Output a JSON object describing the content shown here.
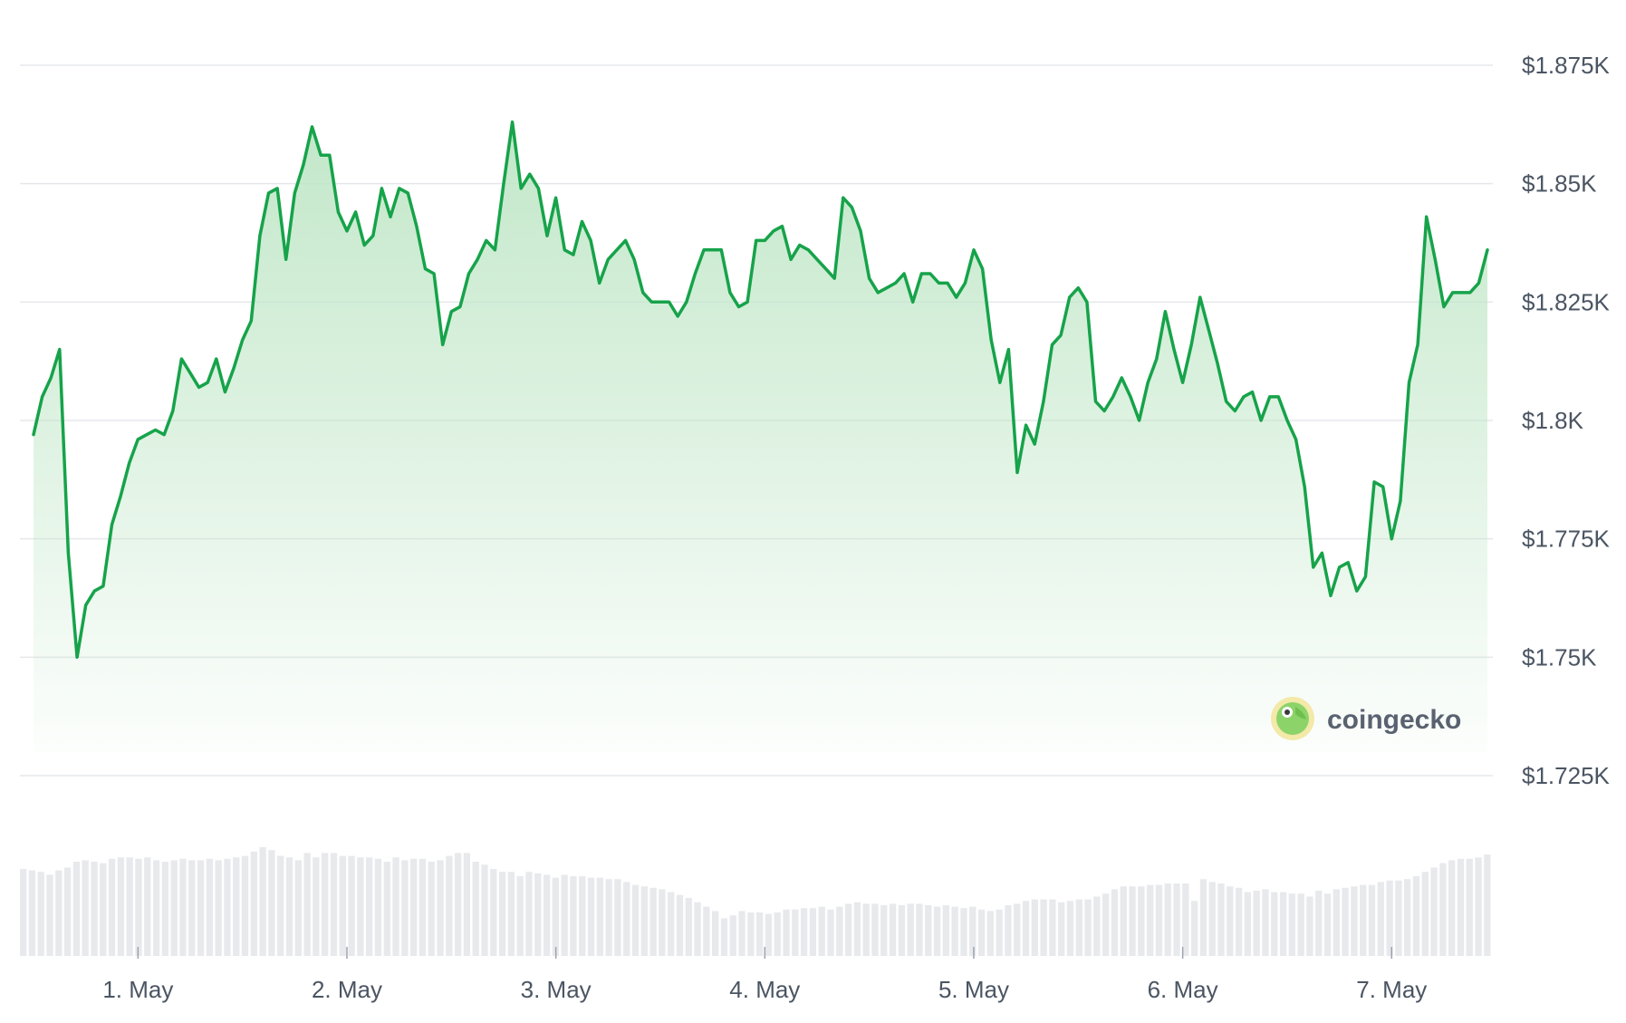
{
  "watermark": {
    "text": "coingecko",
    "icon": "gecko-logo-icon"
  },
  "colors": {
    "line": "#16a34a",
    "fill": "#bfe6c6",
    "grid": "#e5e7eb",
    "volume": "#e8e9ec",
    "text": "#4b5563"
  },
  "chart_data": {
    "type": "area",
    "y_axis": {
      "position": "right",
      "ylim": [
        1725,
        1875
      ],
      "ticks": [
        1725,
        1750,
        1775,
        1800,
        1825,
        1850,
        1875
      ],
      "tick_labels": [
        "$1.725K",
        "$1.75K",
        "$1.775K",
        "$1.8K",
        "$1.825K",
        "$1.85K",
        "$1.875K"
      ]
    },
    "x_axis": {
      "labels": [
        "1. May",
        "2. May",
        "3. May",
        "4. May",
        "5. May",
        "6. May",
        "7. May"
      ],
      "tick_index": [
        12,
        36,
        60,
        84,
        108,
        132,
        156
      ]
    },
    "grid": true,
    "series": [
      {
        "values": [
          1797,
          1805,
          1809,
          1815,
          1772,
          1750,
          1761,
          1764,
          1765,
          1778,
          1784,
          1791,
          1796,
          1797,
          1798,
          1797,
          1802,
          1813,
          1810,
          1807,
          1808,
          1813,
          1806,
          1811,
          1817,
          1821,
          1839,
          1848,
          1849,
          1834,
          1848,
          1854,
          1862,
          1856,
          1856,
          1844,
          1840,
          1844,
          1837,
          1839,
          1849,
          1843,
          1849,
          1848,
          1841,
          1832,
          1831,
          1816,
          1823,
          1824,
          1831,
          1834,
          1838,
          1836,
          1850,
          1863,
          1849,
          1852,
          1849,
          1839,
          1847,
          1836,
          1835,
          1842,
          1838,
          1829,
          1834,
          1836,
          1838,
          1834,
          1827,
          1825,
          1825,
          1825,
          1822,
          1825,
          1831,
          1836,
          1836,
          1836,
          1827,
          1824,
          1825,
          1838,
          1838,
          1840,
          1841,
          1834,
          1837,
          1836,
          1834,
          1832,
          1830,
          1847,
          1845,
          1840,
          1830,
          1827,
          1828,
          1829,
          1831,
          1825,
          1831,
          1831,
          1829,
          1829,
          1826,
          1829,
          1836,
          1832,
          1817,
          1808,
          1815,
          1789,
          1799,
          1795,
          1804,
          1816,
          1818,
          1826,
          1828,
          1825,
          1804,
          1802,
          1805,
          1809,
          1805,
          1800,
          1808,
          1813,
          1823,
          1815,
          1808,
          1816,
          1826,
          1819,
          1812,
          1804,
          1802,
          1805,
          1806,
          1800,
          1805,
          1805,
          1800,
          1796,
          1786,
          1769,
          1772,
          1763,
          1769,
          1770,
          1764,
          1767,
          1787,
          1786,
          1775,
          1783,
          1808,
          1816,
          1843,
          1834,
          1824,
          1827,
          1827,
          1827,
          1829,
          1836
        ]
      },
      {
        "name": "volume",
        "values": [
          0.6,
          0.59,
          0.58,
          0.56,
          0.59,
          0.61,
          0.65,
          0.66,
          0.65,
          0.64,
          0.67,
          0.68,
          0.68,
          0.67,
          0.68,
          0.66,
          0.65,
          0.66,
          0.67,
          0.66,
          0.66,
          0.67,
          0.66,
          0.67,
          0.68,
          0.69,
          0.72,
          0.75,
          0.73,
          0.69,
          0.68,
          0.66,
          0.71,
          0.68,
          0.71,
          0.71,
          0.69,
          0.69,
          0.68,
          0.68,
          0.67,
          0.65,
          0.68,
          0.66,
          0.67,
          0.67,
          0.65,
          0.66,
          0.69,
          0.71,
          0.71,
          0.65,
          0.63,
          0.6,
          0.58,
          0.58,
          0.55,
          0.58,
          0.57,
          0.56,
          0.54,
          0.56,
          0.55,
          0.55,
          0.54,
          0.54,
          0.53,
          0.53,
          0.51,
          0.49,
          0.48,
          0.47,
          0.46,
          0.44,
          0.42,
          0.4,
          0.37,
          0.34,
          0.31,
          0.26,
          0.28,
          0.31,
          0.3,
          0.3,
          0.29,
          0.3,
          0.32,
          0.32,
          0.33,
          0.33,
          0.34,
          0.32,
          0.34,
          0.36,
          0.37,
          0.36,
          0.36,
          0.35,
          0.36,
          0.35,
          0.36,
          0.36,
          0.35,
          0.34,
          0.35,
          0.34,
          0.33,
          0.34,
          0.32,
          0.31,
          0.32,
          0.35,
          0.36,
          0.38,
          0.39,
          0.39,
          0.39,
          0.37,
          0.38,
          0.39,
          0.39,
          0.41,
          0.43,
          0.46,
          0.48,
          0.48,
          0.48,
          0.49,
          0.49,
          0.5,
          0.5,
          0.5,
          0.38,
          0.53,
          0.51,
          0.5,
          0.48,
          0.47,
          0.44,
          0.45,
          0.46,
          0.44,
          0.44,
          0.43,
          0.43,
          0.41,
          0.45,
          0.43,
          0.46,
          0.47,
          0.48,
          0.49,
          0.49,
          0.51,
          0.52,
          0.52,
          0.53,
          0.55,
          0.58,
          0.61,
          0.64,
          0.66,
          0.67,
          0.67,
          0.68,
          0.7
        ]
      }
    ]
  }
}
